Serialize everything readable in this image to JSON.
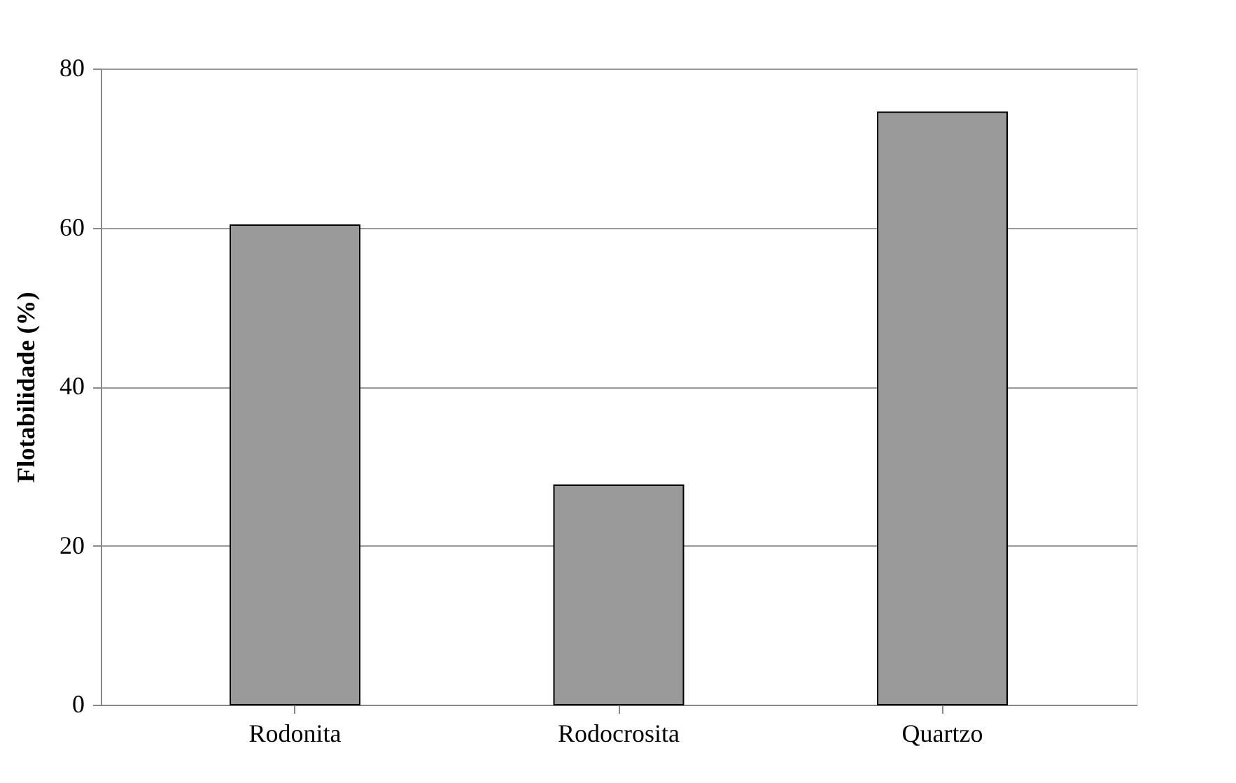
{
  "chart_data": {
    "type": "bar",
    "ylabel": "Flotabilidade  (%)",
    "categories": [
      "Rodonita",
      "Rodocrosita",
      "Quartzo"
    ],
    "values": [
      60.3,
      27.6,
      74.5
    ],
    "color": "#9a9a9a",
    "ylim": [
      0,
      80
    ],
    "yticks": [
      0,
      20,
      40,
      60,
      80
    ],
    "grid": "y"
  }
}
